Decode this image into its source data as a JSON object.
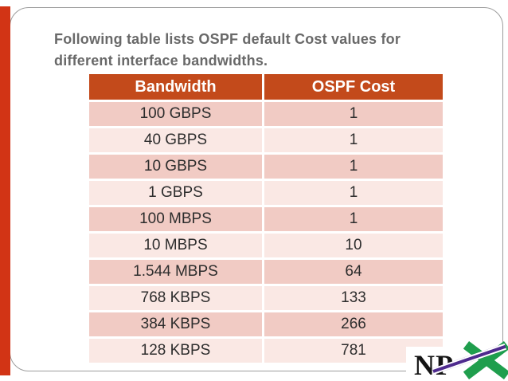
{
  "title": {
    "line1": "Following table lists OSPF default Cost values for",
    "line2": "different interface bandwidths."
  },
  "table": {
    "columns": [
      "Bandwidth",
      "OSPF Cost"
    ],
    "rows": [
      {
        "bandwidth": "100 GBPS",
        "cost": "1"
      },
      {
        "bandwidth": "40 GBPS",
        "cost": "1"
      },
      {
        "bandwidth": "10 GBPS",
        "cost": "1"
      },
      {
        "bandwidth": "1 GBPS",
        "cost": "1"
      },
      {
        "bandwidth": "100 MBPS",
        "cost": "1"
      },
      {
        "bandwidth": "10 MBPS",
        "cost": "10"
      },
      {
        "bandwidth": "1.544 MBPS",
        "cost": "64"
      },
      {
        "bandwidth": "768 KBPS",
        "cost": "133"
      },
      {
        "bandwidth": "384 KBPS",
        "cost": "266"
      },
      {
        "bandwidth": "128 KBPS",
        "cost": "781"
      }
    ]
  },
  "logo": {
    "np": "NP",
    "x_letter": "X"
  },
  "colors": {
    "header_bg": "#C34A1B",
    "row_dark": "#F1CBC4",
    "row_light": "#FAE8E4",
    "header_text": "#FFFFFF",
    "cell_text": "#2D2D2D",
    "title_text": "#696969",
    "frame_border": "#9C9C9C",
    "accent_bar": "#D23415",
    "logo_green": "#1F9E4D",
    "logo_purple": "#4E2A8E",
    "logo_text": "#141414"
  }
}
